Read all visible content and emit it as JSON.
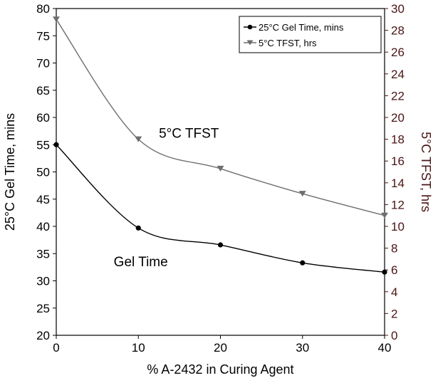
{
  "chart_data": {
    "type": "line",
    "xlabel": "% A-2432 in Curing Agent",
    "ylabel_left": "25°C Gel Time, mins",
    "ylabel_right": "5°C TFST, hrs",
    "xlim": [
      0,
      40
    ],
    "ylim_left": [
      20,
      80
    ],
    "ylim_right": [
      0,
      30
    ],
    "x_ticks": [
      "0",
      "10",
      "20",
      "30",
      "40"
    ],
    "y_left_ticks": [
      "20",
      "25",
      "30",
      "35",
      "40",
      "45",
      "50",
      "55",
      "60",
      "65",
      "70",
      "75",
      "80"
    ],
    "y_right_ticks": [
      "0",
      "2",
      "4",
      "6",
      "8",
      "10",
      "12",
      "14",
      "16",
      "18",
      "20",
      "22",
      "24",
      "26",
      "28",
      "30"
    ],
    "grid": false,
    "legend_position": "top-right",
    "series": [
      {
        "name": "25°C Gel Time, mins",
        "axis": "left",
        "marker": "circle",
        "color": "#000000",
        "x": [
          0,
          10,
          20,
          30,
          40
        ],
        "values": [
          55,
          39.7,
          36.6,
          33.3,
          31.6
        ]
      },
      {
        "name": "5°C TFST, hrs",
        "axis": "right",
        "marker": "triangle-down",
        "color": "#6e6e6e",
        "x": [
          0,
          10,
          20,
          30,
          40
        ],
        "values": [
          29,
          18,
          15.3,
          13,
          11
        ]
      }
    ],
    "annotations": [
      {
        "text": "5°C TFST",
        "x": 12.5,
        "y_left": 56.3
      },
      {
        "text": "Gel Time",
        "x": 7,
        "y_left": 32.7
      }
    ]
  },
  "colors": {
    "left_axis": "#000000",
    "right_axis": "#4a1414",
    "gel_series": "#000000",
    "tfst_series": "#6e6e6e"
  }
}
